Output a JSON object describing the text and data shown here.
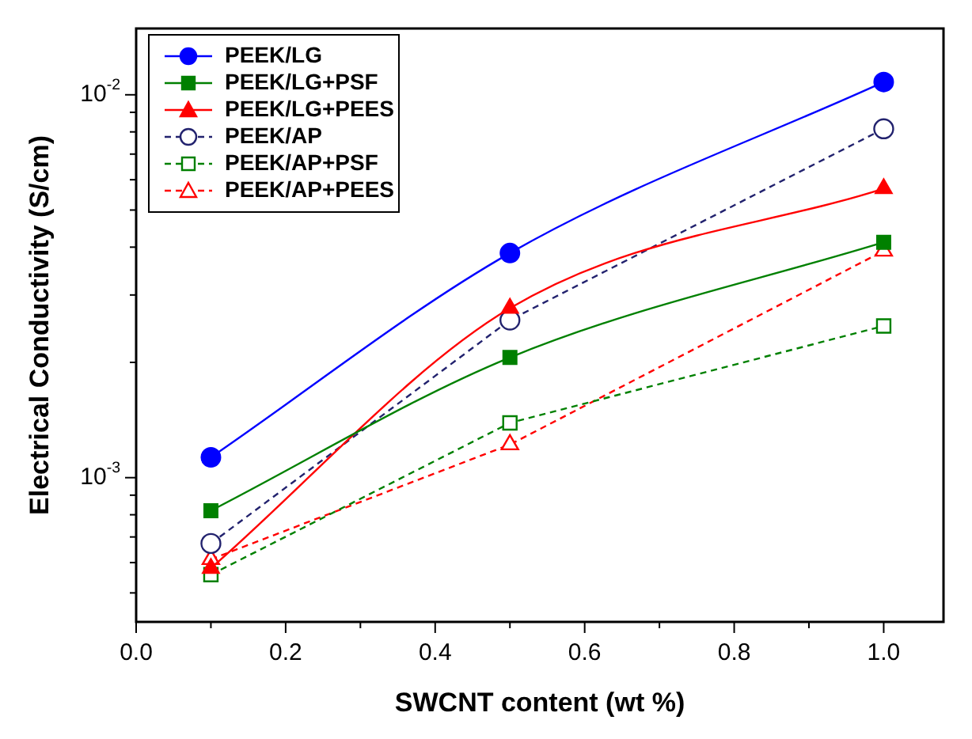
{
  "chart_data": {
    "type": "line",
    "xlabel": "SWCNT content (wt %)",
    "ylabel": "Electrical Conductivity (S/cm)",
    "log": "y",
    "grid": false,
    "legend": "top left",
    "xlim": [
      0,
      1.08
    ],
    "xticks": [
      {
        "value": 0,
        "label": "0.0"
      },
      {
        "value": 0.1,
        "label": null
      },
      {
        "value": 0.2,
        "label": "0.2"
      },
      {
        "value": 0.3,
        "label": null
      },
      {
        "value": 0.4,
        "label": "0.4"
      },
      {
        "value": 0.5,
        "label": null
      },
      {
        "value": 0.6,
        "label": "0.6"
      },
      {
        "value": 0.7,
        "label": null
      },
      {
        "value": 0.8,
        "label": "0.8"
      },
      {
        "value": 0.9,
        "label": null
      },
      {
        "value": 1,
        "label": "1.0"
      }
    ],
    "ylim": [
      0.00042,
      0.0149
    ],
    "yticks": [
      {
        "value": 0.0005,
        "label": null
      },
      {
        "value": 0.0006,
        "label": null
      },
      {
        "value": 0.0007,
        "label": null
      },
      {
        "value": 0.0008,
        "label": null
      },
      {
        "value": 0.0009,
        "label": null
      },
      {
        "value": 0.001,
        "label": "10$^{-3}$"
      },
      {
        "value": 0.002,
        "label": null
      },
      {
        "value": 0.003,
        "label": null
      },
      {
        "value": 0.004,
        "label": null
      },
      {
        "value": 0.005,
        "label": null
      },
      {
        "value": 0.006,
        "label": null
      },
      {
        "value": 0.007,
        "label": null
      },
      {
        "value": 0.008,
        "label": null
      },
      {
        "value": 0.009,
        "label": null
      },
      {
        "value": 0.01,
        "label": "10$^{-2}$"
      }
    ],
    "x": [
      0.1,
      0.5,
      1.0
    ],
    "series": [
      {
        "name": "PEEK/LG",
        "color": "#0000ff",
        "marker": "circle",
        "line_style": "solid",
        "values": [
          0.00113,
          0.00386,
          0.0108
        ]
      },
      {
        "name": "PEEK/LG+PSF",
        "color": "#008000",
        "marker": "square",
        "line_style": "solid",
        "values": [
          0.00082,
          0.00206,
          0.00412
        ]
      },
      {
        "name": "PEEK/LG+PEES",
        "color": "#ff0000",
        "marker": "triangle",
        "line_style": "solid",
        "values": [
          0.00058,
          0.00277,
          0.00569
        ]
      },
      {
        "name": "PEEK/AP",
        "color": "#22226e",
        "marker": "circle",
        "line_style": "dashed",
        "values": [
          0.000673,
          0.00258,
          0.00815
        ]
      },
      {
        "name": "PEEK/AP+PSF",
        "color": "#008000",
        "marker": "square",
        "line_style": "dashed",
        "values": [
          0.000558,
          0.00139,
          0.00249
        ]
      },
      {
        "name": "PEEK/AP+PEES",
        "color": "#ff0000",
        "marker": "triangle",
        "line_style": "dashed",
        "values": [
          0.000612,
          0.00122,
          0.00391
        ]
      }
    ]
  }
}
